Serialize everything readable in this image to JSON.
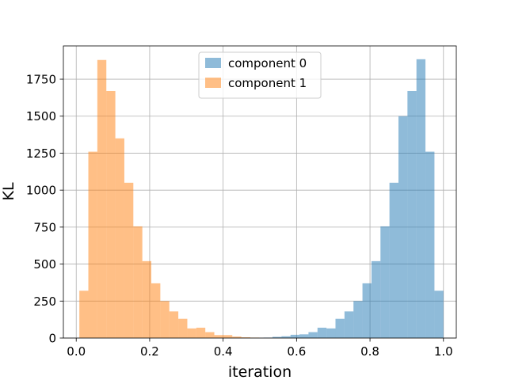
{
  "chart_data": {
    "type": "bar",
    "title": "",
    "xlabel": "iteration",
    "ylabel": "KL",
    "xlim": [
      -0.035,
      1.035
    ],
    "ylim": [
      0,
      1975
    ],
    "grid": true,
    "legend_position": "top-center",
    "x_ticks": [
      0.0,
      0.2,
      0.4,
      0.6,
      0.8,
      1.0
    ],
    "x_tick_labels": [
      "0.0",
      "0.2",
      "0.4",
      "0.6",
      "0.8",
      "1.0"
    ],
    "y_ticks": [
      0,
      250,
      500,
      750,
      1000,
      1250,
      1500,
      1750
    ],
    "y_tick_labels": [
      "0",
      "250",
      "500",
      "750",
      "1000",
      "1250",
      "1500",
      "1750"
    ],
    "bin_width": 0.0245,
    "series": [
      {
        "name": "component 0",
        "color": "#1f77b4",
        "opacity": 0.5,
        "bin_starts": [
          0.51,
          0.5345,
          0.559,
          0.5835,
          0.608,
          0.6325,
          0.657,
          0.6815,
          0.706,
          0.7305,
          0.755,
          0.7795,
          0.804,
          0.8285,
          0.853,
          0.8775,
          0.902,
          0.9265,
          0.951,
          0.9755
        ],
        "values": [
          3,
          8,
          12,
          22,
          25,
          40,
          70,
          65,
          130,
          180,
          250,
          370,
          520,
          755,
          1050,
          1500,
          1670,
          1885,
          1260,
          320
        ]
      },
      {
        "name": "component 1",
        "color": "#ff7f0e",
        "opacity": 0.5,
        "bin_starts": [
          0.0085,
          0.033,
          0.0575,
          0.082,
          0.1065,
          0.131,
          0.1555,
          0.18,
          0.2045,
          0.229,
          0.2535,
          0.278,
          0.3025,
          0.327,
          0.3515,
          0.376,
          0.4005,
          0.425,
          0.4495,
          0.474
        ],
        "values": [
          320,
          1260,
          1880,
          1670,
          1350,
          1050,
          755,
          520,
          370,
          250,
          180,
          130,
          65,
          70,
          40,
          20,
          20,
          10,
          5,
          3
        ]
      }
    ]
  }
}
